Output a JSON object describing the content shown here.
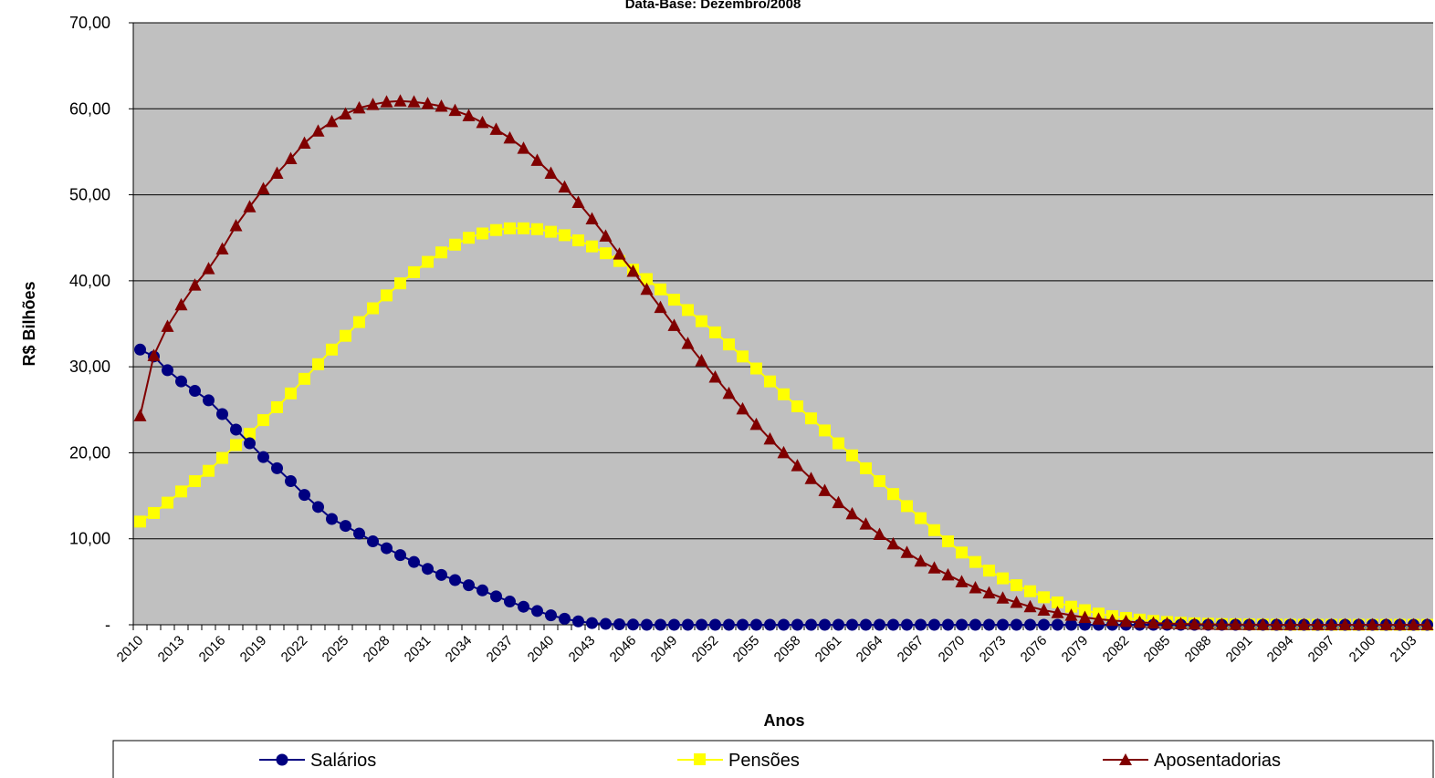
{
  "chart_data": {
    "type": "line",
    "title": "Data-Base: Dezembro/2008",
    "xlabel": "Anos",
    "ylabel": "R$ Bilhões",
    "ylim": [
      0,
      70
    ],
    "yticks": [
      "-",
      "10,00",
      "20,00",
      "30,00",
      "40,00",
      "50,00",
      "60,00",
      "70,00"
    ],
    "xlim": [
      2010,
      2105
    ],
    "xticks": [
      "2010",
      "2013",
      "2016",
      "2019",
      "2022",
      "2025",
      "2028",
      "2031",
      "2034",
      "2037",
      "2040",
      "2043",
      "2046",
      "2049",
      "2052",
      "2055",
      "2058",
      "2061",
      "2064",
      "2067",
      "2070",
      "2073",
      "2076",
      "2079",
      "2082",
      "2085",
      "2088",
      "2091",
      "2094",
      "2097",
      "2100",
      "2103"
    ],
    "grid": "horizontal",
    "legend_position": "bottom",
    "colors": {
      "plot_background": "#c0c0c0",
      "salarios": "#000080",
      "pensoes": "#ffff00",
      "aposentadorias": "#800000"
    },
    "series": [
      {
        "name": "Salários",
        "color": "#000080",
        "marker": "circle",
        "x_start": 2010,
        "values": [
          32.0,
          31.2,
          29.6,
          28.3,
          27.2,
          26.1,
          24.5,
          22.7,
          21.1,
          19.5,
          18.2,
          16.7,
          15.1,
          13.7,
          12.3,
          11.5,
          10.6,
          9.7,
          8.9,
          8.1,
          7.3,
          6.5,
          5.8,
          5.2,
          4.6,
          4.0,
          3.3,
          2.7,
          2.1,
          1.6,
          1.1,
          0.7,
          0.4,
          0.2,
          0.1,
          0.05,
          0.02,
          0.0,
          0.0,
          0.0,
          0.0,
          0.0,
          0.0,
          0.0,
          0.0,
          0.0,
          0.0,
          0.0,
          0.0,
          0.0,
          0.0,
          0.0,
          0.0,
          0.0,
          0.0,
          0.0,
          0.0,
          0.0,
          0.0,
          0.0,
          0.0,
          0.0,
          0.0,
          0.0,
          0.0,
          0.0,
          0.0,
          0.0,
          0.0,
          0.0,
          0.0,
          0.0,
          0.0,
          0.0,
          0.0,
          0.0,
          0.0,
          0.0,
          0.0,
          0.0,
          0.0,
          0.0,
          0.0,
          0.0,
          0.0,
          0.0,
          0.0,
          0.0,
          0.0,
          0.0,
          0.0,
          0.0,
          0.0,
          0.0,
          0.0,
          0.0
        ]
      },
      {
        "name": "Pensões",
        "color": "#ffff00",
        "marker": "square",
        "x_start": 2010,
        "values": [
          12.0,
          13.0,
          14.2,
          15.5,
          16.7,
          17.9,
          19.4,
          20.9,
          22.2,
          23.8,
          25.3,
          26.9,
          28.6,
          30.3,
          32.0,
          33.6,
          35.2,
          36.8,
          38.3,
          39.7,
          41.0,
          42.2,
          43.3,
          44.2,
          45.0,
          45.5,
          45.9,
          46.1,
          46.1,
          46.0,
          45.7,
          45.3,
          44.7,
          44.0,
          43.2,
          42.3,
          41.3,
          40.2,
          39.0,
          37.8,
          36.6,
          35.3,
          34.0,
          32.6,
          31.2,
          29.8,
          28.3,
          26.8,
          25.4,
          24.0,
          22.6,
          21.1,
          19.7,
          18.2,
          16.7,
          15.2,
          13.8,
          12.4,
          11.0,
          9.7,
          8.4,
          7.3,
          6.3,
          5.4,
          4.6,
          3.9,
          3.2,
          2.6,
          2.1,
          1.7,
          1.3,
          1.0,
          0.8,
          0.6,
          0.45,
          0.33,
          0.24,
          0.17,
          0.12,
          0.08,
          0.06,
          0.04,
          0.03,
          0.02,
          0.01,
          0.01,
          0.0,
          0.0,
          0.0,
          0.0,
          0.0,
          0.0,
          0.0,
          0.0,
          0.0,
          0.0
        ]
      },
      {
        "name": "Aposentadorias",
        "color": "#800000",
        "marker": "triangle",
        "x_start": 2010,
        "values": [
          24.3,
          31.3,
          34.7,
          37.2,
          39.5,
          41.4,
          43.7,
          46.4,
          48.6,
          50.7,
          52.5,
          54.2,
          56.0,
          57.4,
          58.5,
          59.4,
          60.1,
          60.5,
          60.8,
          60.9,
          60.8,
          60.6,
          60.3,
          59.8,
          59.2,
          58.4,
          57.6,
          56.6,
          55.4,
          54.0,
          52.5,
          50.9,
          49.1,
          47.2,
          45.2,
          43.1,
          41.1,
          39.0,
          36.9,
          34.8,
          32.7,
          30.7,
          28.8,
          26.9,
          25.1,
          23.3,
          21.6,
          20.0,
          18.5,
          17.0,
          15.6,
          14.2,
          12.9,
          11.7,
          10.5,
          9.4,
          8.4,
          7.4,
          6.6,
          5.8,
          5.0,
          4.3,
          3.7,
          3.1,
          2.6,
          2.1,
          1.7,
          1.4,
          1.1,
          0.85,
          0.65,
          0.5,
          0.38,
          0.28,
          0.2,
          0.15,
          0.1,
          0.07,
          0.05,
          0.03,
          0.02,
          0.01,
          0.01,
          0.0,
          0.0,
          0.0,
          0.0,
          0.0,
          0.0,
          0.0,
          0.0,
          0.0,
          0.0,
          0.0,
          0.0,
          0.0
        ]
      }
    ]
  }
}
